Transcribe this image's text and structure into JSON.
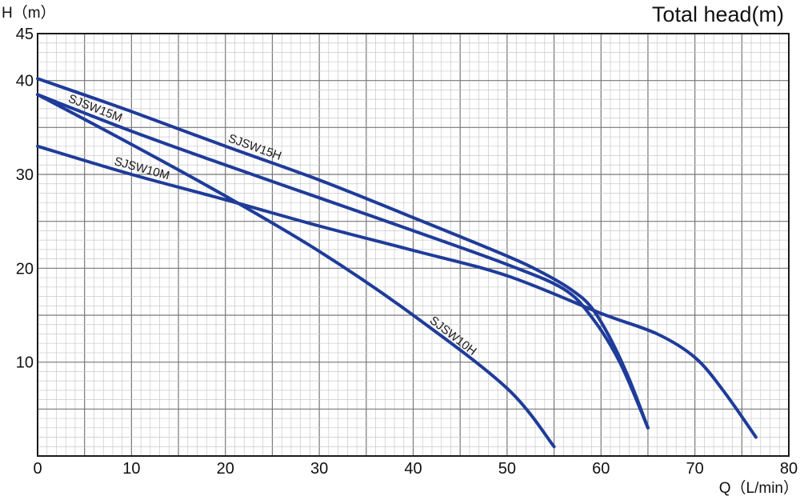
{
  "chart_data": {
    "type": "line",
    "title": "Total head(m)",
    "ylabel": "H（m）",
    "xlabel": "Q（L/min）",
    "xlim": [
      0,
      80
    ],
    "ylim": [
      0,
      45
    ],
    "xticks": [
      0,
      10,
      20,
      30,
      40,
      50,
      60,
      70,
      80
    ],
    "yticks": [
      10,
      20,
      30,
      40,
      45
    ],
    "grid": true,
    "line_color": "#1f3c9a",
    "series": [
      {
        "name": "SJSW15M",
        "x": [
          0,
          10,
          20,
          30,
          40,
          50,
          56,
          59,
          62,
          65
        ],
        "y": [
          38.5,
          34.6,
          31.0,
          27.5,
          24.0,
          20.4,
          17.8,
          14.8,
          10.0,
          3.0
        ]
      },
      {
        "name": "SJSW15H",
        "x": [
          0,
          10,
          20,
          30,
          40,
          50,
          54,
          57,
          59,
          61,
          63,
          65
        ],
        "y": [
          40.2,
          36.7,
          33.0,
          29.4,
          25.4,
          21.3,
          19.4,
          17.6,
          15.8,
          12.5,
          8.2,
          3.0
        ]
      },
      {
        "name": "SJSW10M",
        "x": [
          0,
          10,
          20,
          30,
          40,
          50,
          60,
          66,
          70,
          73,
          76.5
        ],
        "y": [
          33.0,
          30.0,
          27.3,
          24.5,
          21.9,
          19.2,
          15.2,
          13.0,
          10.5,
          7.0,
          2.0
        ]
      },
      {
        "name": "SJSW10H",
        "x": [
          0,
          10,
          20,
          30,
          40,
          50,
          55
        ],
        "y": [
          38.5,
          33.2,
          27.7,
          21.8,
          15.0,
          7.2,
          1.0
        ]
      }
    ],
    "labels": [
      {
        "series": "SJSW15M",
        "text": "SJSW15M"
      },
      {
        "series": "SJSW15H",
        "text": "SJSW15H"
      },
      {
        "series": "SJSW10M",
        "text": "SJSW10M"
      },
      {
        "series": "SJSW10H",
        "text": "SJSW10H"
      }
    ]
  }
}
